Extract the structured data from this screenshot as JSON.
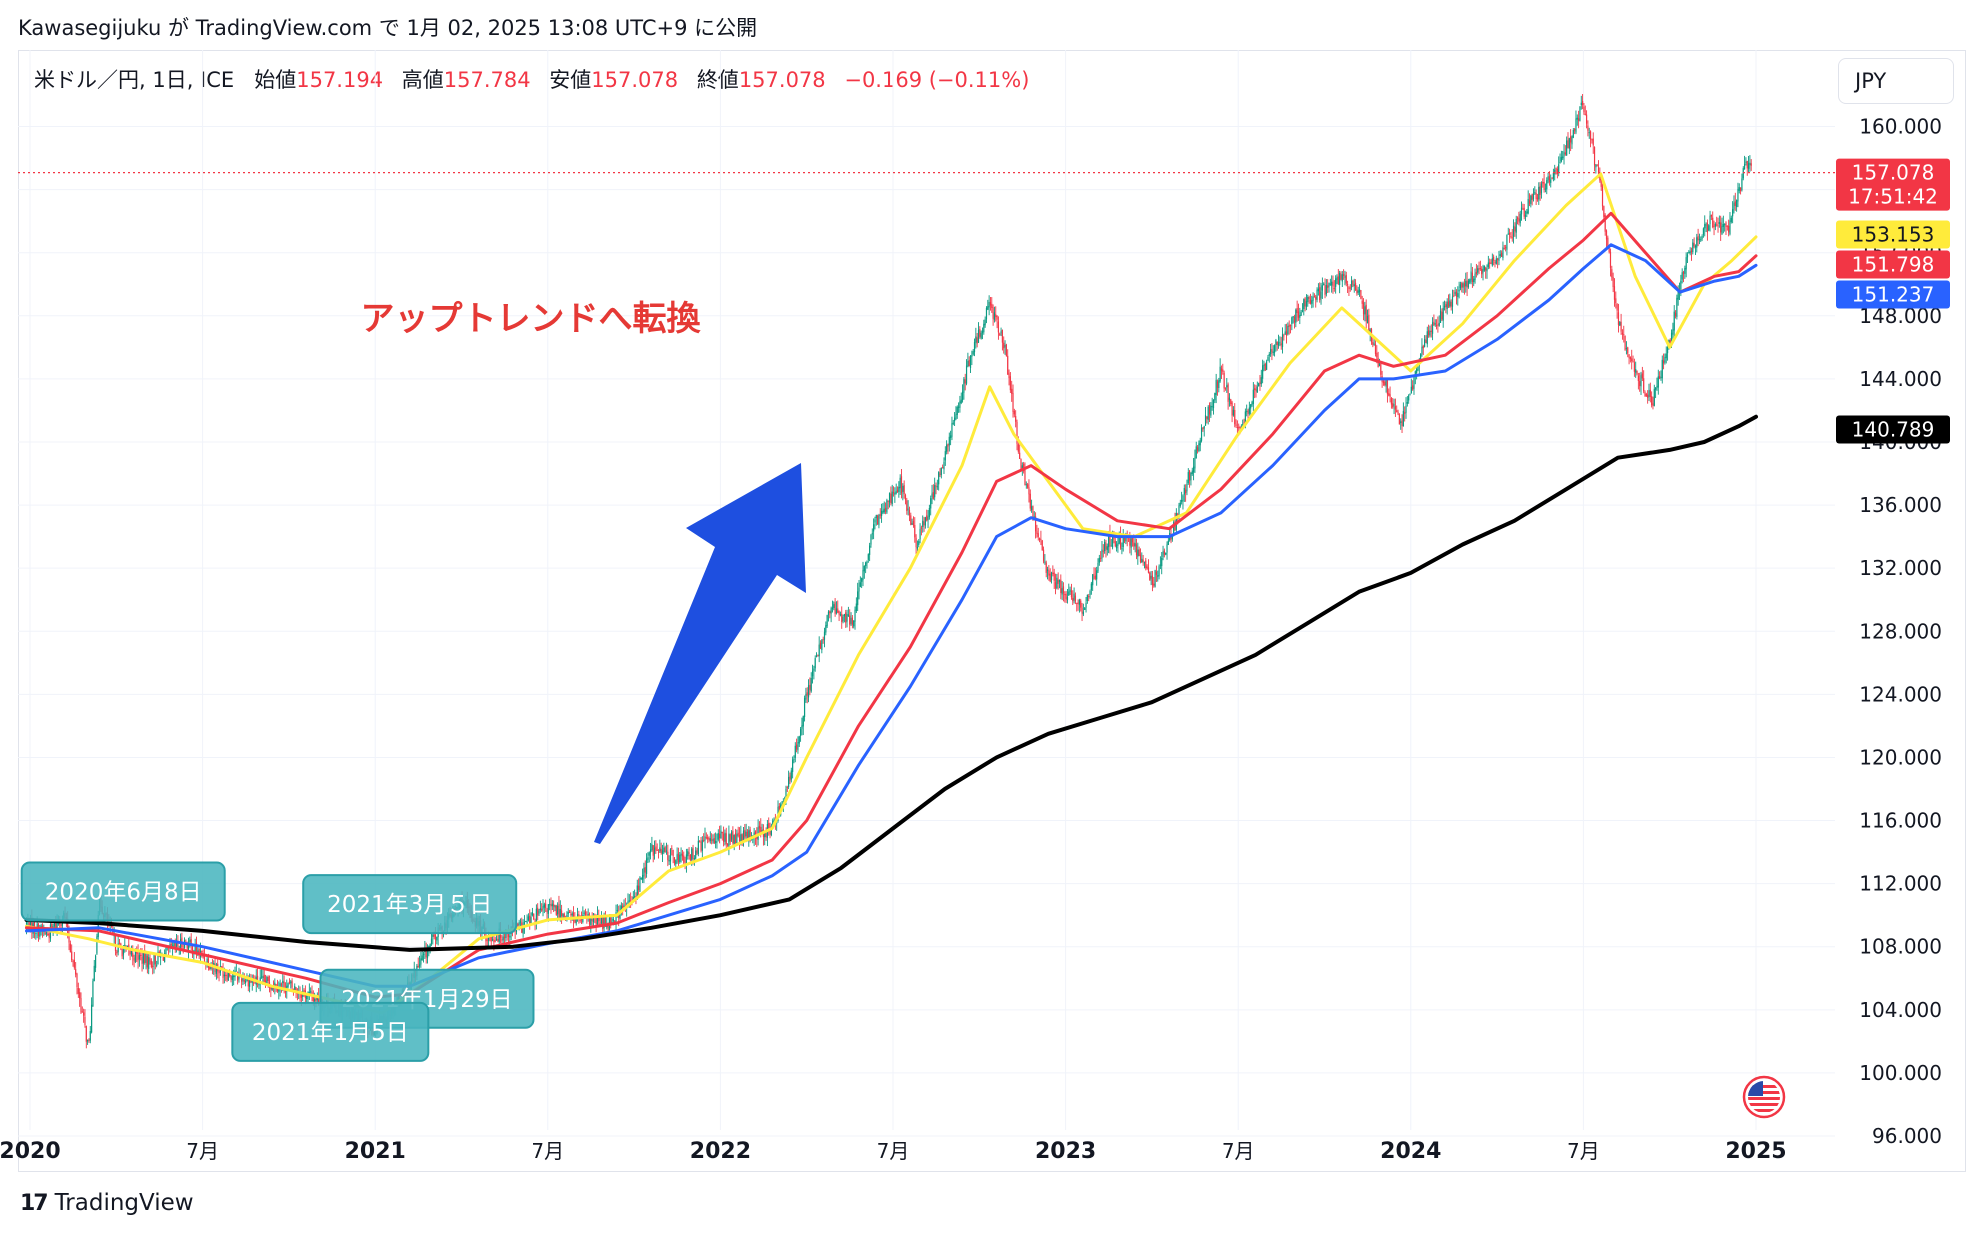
{
  "header": {
    "text": "Kawasegijuku が TradingView.com で 1月 02, 2025 13:08 UTC+9 に公開"
  },
  "legend": {
    "symbol": "米ドル／円, 1日, ICE",
    "open_label": "始値",
    "open": "157.194",
    "high_label": "高値",
    "high": "157.784",
    "low_label": "安値",
    "low": "157.078",
    "close_label": "終値",
    "close": "157.078",
    "change": "−0.169 (−0.11%)"
  },
  "currency_button": "JPY",
  "footer": {
    "brand": "TradingView",
    "logo": "17"
  },
  "colors": {
    "up": "#089981",
    "down": "#f23645",
    "ma_yellow": "#ffeb3b",
    "ma_red": "#f23645",
    "ma_blue": "#2962ff",
    "ma_black": "#000000",
    "arrow": "#1e4fe0",
    "note": "#4ab6bf",
    "annotation_text": "#e53935"
  },
  "chart_data": {
    "type": "line",
    "title": "",
    "xlabel": "",
    "ylabel": "",
    "ylim": [
      94,
      163
    ],
    "y_ticks": [
      "96.000",
      "100.000",
      "104.000",
      "108.000",
      "112.000",
      "116.000",
      "120.000",
      "124.000",
      "128.000",
      "132.000",
      "136.000",
      "140.000",
      "144.000",
      "148.000",
      "152.000",
      "156.000",
      "160.000"
    ],
    "x_ticks": [
      {
        "t": 2020.0,
        "label": "2020",
        "bold": true
      },
      {
        "t": 2020.5,
        "label": "7月",
        "bold": false
      },
      {
        "t": 2021.0,
        "label": "2021",
        "bold": true
      },
      {
        "t": 2021.5,
        "label": "7月",
        "bold": false
      },
      {
        "t": 2022.0,
        "label": "2022",
        "bold": true
      },
      {
        "t": 2022.5,
        "label": "7月",
        "bold": false
      },
      {
        "t": 2023.0,
        "label": "2023",
        "bold": true
      },
      {
        "t": 2023.5,
        "label": "7月",
        "bold": false
      },
      {
        "t": 2024.0,
        "label": "2024",
        "bold": true
      },
      {
        "t": 2024.5,
        "label": "7月",
        "bold": false
      },
      {
        "t": 2025.0,
        "label": "2025",
        "bold": true
      }
    ],
    "xlim": [
      2020.0,
      2025.0
    ],
    "price_key": [
      [
        2019.99,
        109.5
      ],
      [
        2020.05,
        108.8
      ],
      [
        2020.1,
        110.0
      ],
      [
        2020.17,
        101.5
      ],
      [
        2020.2,
        111.0
      ],
      [
        2020.25,
        108.0
      ],
      [
        2020.35,
        107.0
      ],
      [
        2020.45,
        108.3
      ],
      [
        2020.55,
        106.5
      ],
      [
        2020.65,
        105.8
      ],
      [
        2020.75,
        105.5
      ],
      [
        2020.85,
        104.5
      ],
      [
        2020.95,
        103.5
      ],
      [
        2021.0,
        102.8
      ],
      [
        2021.08,
        105.0
      ],
      [
        2021.17,
        108.5
      ],
      [
        2021.25,
        110.8
      ],
      [
        2021.33,
        108.5
      ],
      [
        2021.42,
        109.2
      ],
      [
        2021.5,
        110.5
      ],
      [
        2021.58,
        109.8
      ],
      [
        2021.67,
        109.5
      ],
      [
        2021.75,
        111.0
      ],
      [
        2021.8,
        114.2
      ],
      [
        2021.9,
        113.5
      ],
      [
        2021.97,
        115.0
      ],
      [
        2022.05,
        114.8
      ],
      [
        2022.15,
        115.5
      ],
      [
        2022.2,
        118.5
      ],
      [
        2022.25,
        124.0
      ],
      [
        2022.32,
        129.5
      ],
      [
        2022.38,
        128.5
      ],
      [
        2022.45,
        135.0
      ],
      [
        2022.52,
        137.5
      ],
      [
        2022.57,
        133.5
      ],
      [
        2022.65,
        139.0
      ],
      [
        2022.72,
        145.0
      ],
      [
        2022.78,
        148.8
      ],
      [
        2022.82,
        146.5
      ],
      [
        2022.87,
        138.5
      ],
      [
        2022.95,
        131.5
      ],
      [
        2023.05,
        129.5
      ],
      [
        2023.12,
        133.8
      ],
      [
        2023.2,
        133.5
      ],
      [
        2023.25,
        131.0
      ],
      [
        2023.32,
        135.0
      ],
      [
        2023.38,
        139.5
      ],
      [
        2023.45,
        144.5
      ],
      [
        2023.5,
        140.5
      ],
      [
        2023.58,
        145.0
      ],
      [
        2023.68,
        148.5
      ],
      [
        2023.8,
        150.5
      ],
      [
        2023.85,
        149.5
      ],
      [
        2023.92,
        144.0
      ],
      [
        2023.97,
        141.0
      ],
      [
        2024.05,
        147.0
      ],
      [
        2024.15,
        150.0
      ],
      [
        2024.25,
        151.5
      ],
      [
        2024.32,
        154.5
      ],
      [
        2024.42,
        157.0
      ],
      [
        2024.5,
        161.5
      ],
      [
        2024.55,
        156.0
      ],
      [
        2024.6,
        147.5
      ],
      [
        2024.65,
        144.5
      ],
      [
        2024.7,
        142.5
      ],
      [
        2024.75,
        146.5
      ],
      [
        2024.8,
        152.0
      ],
      [
        2024.87,
        154.0
      ],
      [
        2024.92,
        153.5
      ],
      [
        2024.97,
        157.5
      ],
      [
        2025.0,
        157.1
      ]
    ],
    "series": [
      {
        "color": "#ffeb3b",
        "width": 3,
        "points": [
          [
            2019.99,
            109.3
          ],
          [
            2020.17,
            108.5
          ],
          [
            2020.3,
            107.8
          ],
          [
            2020.5,
            107.0
          ],
          [
            2020.7,
            105.5
          ],
          [
            2020.9,
            104.5
          ],
          [
            2021.02,
            103.8
          ],
          [
            2021.15,
            105.8
          ],
          [
            2021.3,
            108.5
          ],
          [
            2021.5,
            109.7
          ],
          [
            2021.7,
            110.0
          ],
          [
            2021.85,
            112.8
          ],
          [
            2022.0,
            114.0
          ],
          [
            2022.15,
            115.5
          ],
          [
            2022.25,
            120.0
          ],
          [
            2022.4,
            126.5
          ],
          [
            2022.55,
            132.0
          ],
          [
            2022.7,
            138.5
          ],
          [
            2022.78,
            143.5
          ],
          [
            2022.85,
            140.5
          ],
          [
            2022.95,
            137.5
          ],
          [
            2023.05,
            134.5
          ],
          [
            2023.2,
            134.0
          ],
          [
            2023.35,
            135.5
          ],
          [
            2023.5,
            140.5
          ],
          [
            2023.65,
            145.0
          ],
          [
            2023.8,
            148.5
          ],
          [
            2023.9,
            146.5
          ],
          [
            2024.0,
            144.5
          ],
          [
            2024.15,
            147.5
          ],
          [
            2024.3,
            151.5
          ],
          [
            2024.45,
            155.0
          ],
          [
            2024.55,
            157.0
          ],
          [
            2024.65,
            150.5
          ],
          [
            2024.75,
            146.0
          ],
          [
            2024.85,
            150.0
          ],
          [
            2024.93,
            151.5
          ],
          [
            2025.0,
            153.0
          ]
        ]
      },
      {
        "color": "#f23645",
        "width": 3,
        "points": [
          [
            2019.99,
            109.2
          ],
          [
            2020.2,
            109.0
          ],
          [
            2020.5,
            107.5
          ],
          [
            2020.8,
            106.0
          ],
          [
            2021.0,
            104.8
          ],
          [
            2021.1,
            105.0
          ],
          [
            2021.3,
            107.8
          ],
          [
            2021.5,
            108.8
          ],
          [
            2021.7,
            109.5
          ],
          [
            2021.85,
            110.8
          ],
          [
            2022.0,
            112.0
          ],
          [
            2022.15,
            113.5
          ],
          [
            2022.25,
            116.0
          ],
          [
            2022.4,
            122.0
          ],
          [
            2022.55,
            127.0
          ],
          [
            2022.7,
            133.0
          ],
          [
            2022.8,
            137.5
          ],
          [
            2022.9,
            138.5
          ],
          [
            2023.0,
            137.0
          ],
          [
            2023.15,
            135.0
          ],
          [
            2023.3,
            134.5
          ],
          [
            2023.45,
            137.0
          ],
          [
            2023.6,
            140.5
          ],
          [
            2023.75,
            144.5
          ],
          [
            2023.85,
            145.5
          ],
          [
            2023.95,
            144.8
          ],
          [
            2024.1,
            145.5
          ],
          [
            2024.25,
            148.0
          ],
          [
            2024.4,
            151.0
          ],
          [
            2024.5,
            152.8
          ],
          [
            2024.58,
            154.5
          ],
          [
            2024.68,
            152.0
          ],
          [
            2024.78,
            149.5
          ],
          [
            2024.88,
            150.5
          ],
          [
            2024.95,
            150.8
          ],
          [
            2025.0,
            151.8
          ]
        ]
      },
      {
        "color": "#2962ff",
        "width": 3,
        "points": [
          [
            2019.99,
            109.0
          ],
          [
            2020.2,
            109.2
          ],
          [
            2020.5,
            108.0
          ],
          [
            2020.8,
            106.5
          ],
          [
            2021.0,
            105.5
          ],
          [
            2021.1,
            105.5
          ],
          [
            2021.3,
            107.3
          ],
          [
            2021.5,
            108.2
          ],
          [
            2021.7,
            109.0
          ],
          [
            2021.85,
            110.0
          ],
          [
            2022.0,
            111.0
          ],
          [
            2022.15,
            112.5
          ],
          [
            2022.25,
            114.0
          ],
          [
            2022.4,
            119.5
          ],
          [
            2022.55,
            124.5
          ],
          [
            2022.7,
            130.0
          ],
          [
            2022.8,
            134.0
          ],
          [
            2022.9,
            135.2
          ],
          [
            2023.0,
            134.5
          ],
          [
            2023.15,
            134.0
          ],
          [
            2023.3,
            134.0
          ],
          [
            2023.45,
            135.5
          ],
          [
            2023.6,
            138.5
          ],
          [
            2023.75,
            142.0
          ],
          [
            2023.85,
            144.0
          ],
          [
            2023.95,
            144.0
          ],
          [
            2024.1,
            144.5
          ],
          [
            2024.25,
            146.5
          ],
          [
            2024.4,
            149.0
          ],
          [
            2024.5,
            151.0
          ],
          [
            2024.58,
            152.5
          ],
          [
            2024.68,
            151.5
          ],
          [
            2024.78,
            149.5
          ],
          [
            2024.88,
            150.2
          ],
          [
            2024.95,
            150.5
          ],
          [
            2025.0,
            151.2
          ]
        ]
      },
      {
        "color": "#000000",
        "width": 4,
        "points": [
          [
            2019.99,
            109.7
          ],
          [
            2020.2,
            109.5
          ],
          [
            2020.5,
            109.0
          ],
          [
            2020.8,
            108.3
          ],
          [
            2021.1,
            107.8
          ],
          [
            2021.4,
            108.0
          ],
          [
            2021.6,
            108.5
          ],
          [
            2021.8,
            109.2
          ],
          [
            2022.0,
            110.0
          ],
          [
            2022.2,
            111.0
          ],
          [
            2022.35,
            113.0
          ],
          [
            2022.5,
            115.5
          ],
          [
            2022.65,
            118.0
          ],
          [
            2022.8,
            120.0
          ],
          [
            2022.95,
            121.5
          ],
          [
            2023.1,
            122.5
          ],
          [
            2023.25,
            123.5
          ],
          [
            2023.4,
            125.0
          ],
          [
            2023.55,
            126.5
          ],
          [
            2023.7,
            128.5
          ],
          [
            2023.85,
            130.5
          ],
          [
            2024.0,
            131.7
          ],
          [
            2024.15,
            133.5
          ],
          [
            2024.3,
            135.0
          ],
          [
            2024.45,
            137.0
          ],
          [
            2024.6,
            139.0
          ],
          [
            2024.75,
            139.5
          ],
          [
            2024.85,
            140.0
          ],
          [
            2024.95,
            141.0
          ],
          [
            2025.0,
            141.6
          ]
        ]
      }
    ],
    "price_line": 157.078,
    "price_labels": [
      {
        "value": 157.078,
        "text": "157.078",
        "text2": "17:51:42",
        "bg": "#f23645",
        "fg": "#ffffff"
      },
      {
        "value": 153.153,
        "text": "153.153",
        "bg": "#ffeb3b",
        "fg": "#131722"
      },
      {
        "value": 151.798,
        "text": "151.798",
        "bg": "#f23645",
        "fg": "#ffffff"
      },
      {
        "value": 151.237,
        "text": "151.237",
        "bg": "#2962ff",
        "fg": "#ffffff"
      },
      {
        "value": 140.789,
        "text": "140.789",
        "bg": "#000000",
        "fg": "#ffffff"
      }
    ],
    "annotations": [
      {
        "text": "アップトレンドへ転換",
        "t": 2021.45,
        "y": 147.1
      },
      {
        "text": "2020年6月8日",
        "t": 2020.27,
        "y": 111.5
      },
      {
        "text": "2021年3月５日",
        "t": 2021.1,
        "y": 110.7
      },
      {
        "text": "2021年1月29日",
        "t": 2021.15,
        "y": 104.7
      },
      {
        "text": "2021年1月5日",
        "t": 2020.87,
        "y": 102.6
      }
    ]
  }
}
